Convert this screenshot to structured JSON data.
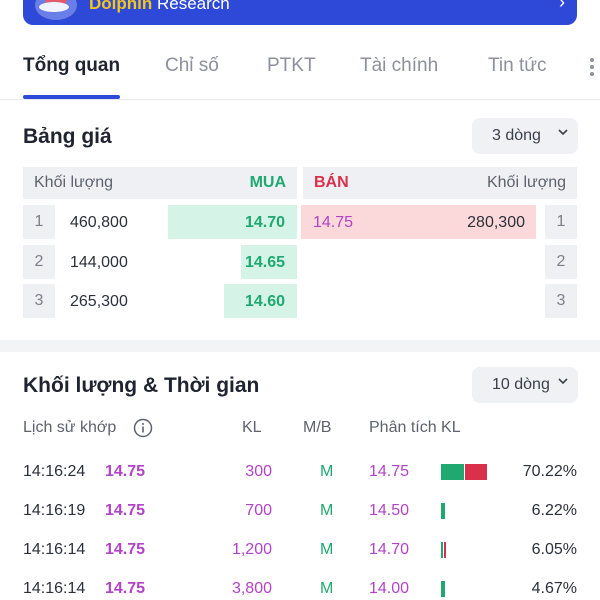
{
  "banner": {
    "brand": "Dolphin",
    "rest": " Research"
  },
  "tabs": [
    {
      "label": "Tổng quan",
      "active": true
    },
    {
      "label": "Chỉ số",
      "active": false
    },
    {
      "label": "PTKT",
      "active": false
    },
    {
      "label": "Tài chính",
      "active": false
    },
    {
      "label": "Tin tức",
      "active": false
    }
  ],
  "order_book": {
    "title": "Bảng giá",
    "dropdown": "3 dòng",
    "headers": {
      "buy_volume": "Khối lượng",
      "buy": "MUA",
      "sell": "BÁN",
      "sell_volume": "Khối lượng"
    },
    "rows": [
      {
        "index": "1",
        "buy_volume": "460,800",
        "buy_price": "14.70",
        "buy_share": 0.46,
        "sell_price": "14.75",
        "sell_volume": "280,300",
        "sell_share": 0.85,
        "right_index": "1"
      },
      {
        "index": "2",
        "buy_volume": "144,000",
        "buy_price": "14.65",
        "buy_share": 0.2,
        "sell_price": "",
        "sell_volume": "",
        "sell_share": 0,
        "right_index": "2"
      },
      {
        "index": "3",
        "buy_volume": "265,300",
        "buy_price": "14.60",
        "buy_share": 0.26,
        "sell_price": "",
        "sell_volume": "",
        "sell_share": 0,
        "right_index": "3"
      }
    ]
  },
  "trades": {
    "title": "Khối lượng & Thời gian",
    "dropdown": "10 dòng",
    "headers": {
      "history": "Lịch sử khớp",
      "kl": "KL",
      "mb": "M/B",
      "analysis": "Phân tích KL"
    },
    "rows": [
      {
        "time": "14:16:24",
        "price": "14.75",
        "kl": "300",
        "mb": "M",
        "analysis_price": "14.75",
        "pct": "70.22%",
        "buy_fraction": 0.51,
        "sell_fraction": 0.49,
        "share": 0.7022
      },
      {
        "time": "14:16:19",
        "price": "14.75",
        "kl": "700",
        "mb": "M",
        "analysis_price": "14.50",
        "pct": "6.22%",
        "buy_fraction": 1.0,
        "sell_fraction": 0,
        "share": 0.0622
      },
      {
        "time": "14:16:14",
        "price": "14.75",
        "kl": "1,200",
        "mb": "M",
        "analysis_price": "14.70",
        "pct": "6.05%",
        "buy_fraction": 0.4,
        "sell_fraction": 0.6,
        "share": 0.0605
      },
      {
        "time": "14:16:14",
        "price": "14.75",
        "kl": "3,800",
        "mb": "M",
        "analysis_price": "14.00",
        "pct": "4.67%",
        "buy_fraction": 1.0,
        "sell_fraction": 0,
        "share": 0.0467
      }
    ]
  },
  "colors": {
    "accent": "#2e49d8",
    "buy": "#1fa971",
    "sell": "#d9314a",
    "ref_price": "#b243c8"
  },
  "icons": {
    "banner_chevron": "chevron-right-icon",
    "dropdown_chevron": "chevron-down-icon",
    "info": "info-icon",
    "more": "more-vertical-icon"
  }
}
